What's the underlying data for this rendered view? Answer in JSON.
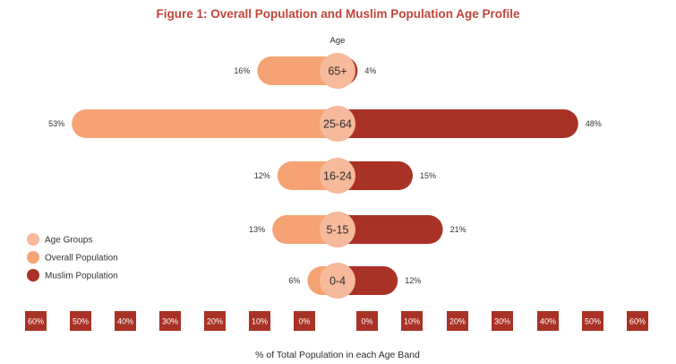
{
  "chart_data": {
    "type": "bar",
    "orientation": "horizontal-butterfly",
    "title": "Figure 1: Overall Population and Muslim Population Age Profile",
    "center_header": "Age",
    "xlabel": "% of Total Population in each Age Band",
    "categories": [
      "65+",
      "25-64",
      "16-24",
      "5-15",
      "0-4"
    ],
    "series": [
      {
        "name": "Overall Population",
        "side": "left",
        "values": [
          16,
          53,
          12,
          13,
          6
        ],
        "color": "#f5a374"
      },
      {
        "name": "Muslim Population",
        "side": "right",
        "values": [
          4,
          48,
          15,
          21,
          12
        ],
        "color": "#a93226"
      }
    ],
    "data_labels": {
      "left": [
        "16%",
        "53%",
        "12%",
        "13%",
        "6%"
      ],
      "right": [
        "4%",
        "48%",
        "15%",
        "21%",
        "12%"
      ]
    },
    "ticks_left": [
      "60%",
      "50%",
      "40%",
      "30%",
      "20%",
      "10%",
      "0%"
    ],
    "ticks_right": [
      "0%",
      "10%",
      "20%",
      "30%",
      "40%",
      "50%",
      "60%"
    ],
    "xlim": [
      0,
      60
    ],
    "legend": {
      "placement": "left",
      "items": [
        {
          "label": "Age Groups",
          "color": "#f6b99b"
        },
        {
          "label": "Overall Population",
          "color": "#f5a374"
        },
        {
          "label": "Muslim Population",
          "color": "#a93226"
        }
      ]
    },
    "colors": {
      "title": "#c0453a",
      "tick_box": "#a93226",
      "age_circle": "#f6b99b"
    }
  }
}
